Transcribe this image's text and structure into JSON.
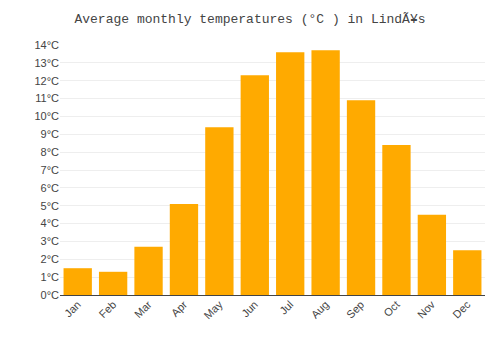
{
  "chart_data": {
    "type": "bar",
    "title": "Average monthly temperatures (°C ) in LindÃ¥s",
    "categories": [
      "Jan",
      "Feb",
      "Mar",
      "Apr",
      "May",
      "Jun",
      "Jul",
      "Aug",
      "Sep",
      "Oct",
      "Nov",
      "Dec"
    ],
    "values": [
      1.5,
      1.3,
      2.7,
      5.1,
      9.4,
      12.3,
      13.6,
      13.7,
      10.9,
      8.4,
      4.5,
      2.5
    ],
    "color": "#FFAA00",
    "ylim": [
      0,
      14
    ],
    "yticks": [
      {
        "value": 0,
        "label": "0°C"
      },
      {
        "value": 1,
        "label": "1°C"
      },
      {
        "value": 2,
        "label": "2°C"
      },
      {
        "value": 3,
        "label": "3°C"
      },
      {
        "value": 4,
        "label": "4°C"
      },
      {
        "value": 5,
        "label": "5°C"
      },
      {
        "value": 6,
        "label": "6°C"
      },
      {
        "value": 7,
        "label": "7°C"
      },
      {
        "value": 8,
        "label": "8°C"
      },
      {
        "value": 9,
        "label": "9°C"
      },
      {
        "value": 10,
        "label": "10°C"
      },
      {
        "value": 11,
        "label": "11°C"
      },
      {
        "value": 12,
        "label": "12°C"
      },
      {
        "value": 13,
        "label": "13°C"
      },
      {
        "value": 14,
        "label": "14°C"
      }
    ],
    "grid": true
  }
}
